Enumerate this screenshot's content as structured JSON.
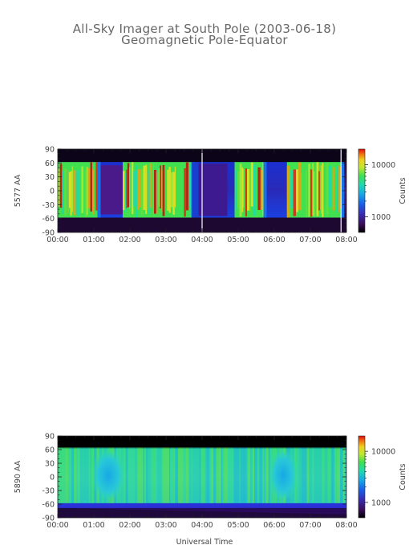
{
  "page": {
    "title_line1": "All-Sky Imager at South Pole (2003-06-18)",
    "title_line2": "Geomagnetic Pole-Equator",
    "x_axis_label": "Universal Time"
  },
  "colors": {
    "palette": [
      "#000000",
      "#2a0a3a",
      "#4a1a7a",
      "#3a2aa0",
      "#1f3fd0",
      "#1a70e6",
      "#18b0e6",
      "#20d8b0",
      "#40e060",
      "#b0e830",
      "#f0e020",
      "#f08010",
      "#e01010"
    ]
  },
  "chart_data": [
    {
      "type": "heatmap",
      "panel": "5577",
      "ylabel": "5577 AA",
      "x_tick_labels": [
        "00:00",
        "01:00",
        "02:00",
        "03:00",
        "04:00",
        "05:00",
        "06:00",
        "07:00",
        "08:00"
      ],
      "y_tick_labels": [
        "90",
        "60",
        "30",
        "0",
        "-30",
        "-60",
        "-90"
      ],
      "y_ticks": [
        90,
        60,
        30,
        0,
        -30,
        -60,
        -90
      ],
      "xlim_hours": [
        0,
        8
      ],
      "ylim": [
        -90,
        90
      ],
      "colorbar": {
        "label": "Counts",
        "scale": "log",
        "tick_labels": [
          "10000",
          "1000"
        ],
        "tick_values": [
          10000,
          1000
        ],
        "range": [
          500,
          20000
        ]
      },
      "data_coverage": [
        -58,
        62
      ],
      "bright_intervals_hours": [
        [
          0.0,
          1.1
        ],
        [
          1.8,
          3.7
        ],
        [
          4.9,
          5.7
        ],
        [
          6.35,
          7.85
        ]
      ],
      "quiet_intervals_hours": [
        [
          1.1,
          1.8
        ],
        [
          3.9,
          4.9
        ],
        [
          5.7,
          6.35
        ]
      ]
    },
    {
      "type": "heatmap",
      "panel": "5890",
      "ylabel": "5890 AA",
      "x_tick_labels": [
        "00:00",
        "01:00",
        "02:00",
        "03:00",
        "04:00",
        "05:00",
        "06:00",
        "07:00",
        "08:00"
      ],
      "y_tick_labels": [
        "90",
        "60",
        "30",
        "0",
        "-30",
        "-60",
        "-90"
      ],
      "y_ticks": [
        90,
        60,
        30,
        0,
        -30,
        -60,
        -90
      ],
      "xlim_hours": [
        0,
        8
      ],
      "ylim": [
        -90,
        90
      ],
      "colorbar": {
        "label": "Counts",
        "scale": "log",
        "tick_labels": [
          "10000",
          "1000"
        ],
        "tick_values": [
          10000,
          1000
        ],
        "range": [
          500,
          20000
        ]
      },
      "data_coverage": [
        -58,
        65
      ],
      "dim_patches_hours": [
        [
          1.0,
          1.8
        ],
        [
          5.9,
          6.6
        ]
      ]
    }
  ]
}
